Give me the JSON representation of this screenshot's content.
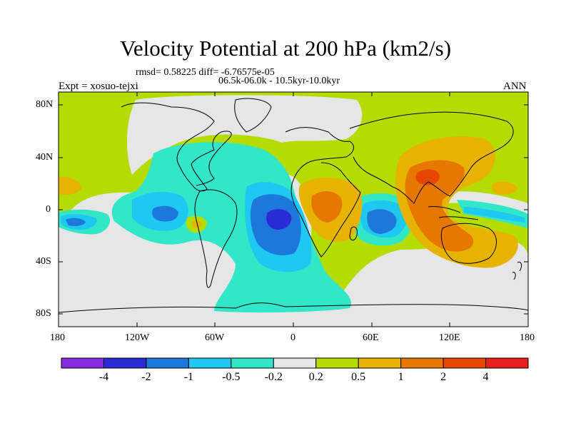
{
  "header": {
    "title": "Velocity Potential at 200 hPa (km2/s)",
    "stats": "rmsd= 0.58225 diff= -6.76575e-05",
    "period": "06.5k-06.0k - 10.5kyr-10.0kyr",
    "experiment": "Expt = xosuo-tejxi",
    "season": "ANN"
  },
  "axes": {
    "x_ticks": [
      "180",
      "120W",
      "60W",
      "0",
      "60E",
      "120E",
      "180"
    ],
    "y_ticks": [
      "80N",
      "40N",
      "0",
      "40S",
      "80S"
    ]
  },
  "colorbar": {
    "colors": [
      "#8a2be2",
      "#2a2ad6",
      "#1e78dc",
      "#1ec8f0",
      "#32e6c8",
      "#e6e6e6",
      "#b4dc00",
      "#e6b400",
      "#e67800",
      "#e64600",
      "#e61e1e"
    ],
    "labels": [
      "-4",
      "-2",
      "-1",
      "-0.5",
      "-0.2",
      "0.2",
      "0.5",
      "1",
      "2",
      "4"
    ]
  },
  "colors": {
    "land_outline": "#000000",
    "background_positive": "#b4dc00",
    "neutral": "#e6e6e6"
  }
}
